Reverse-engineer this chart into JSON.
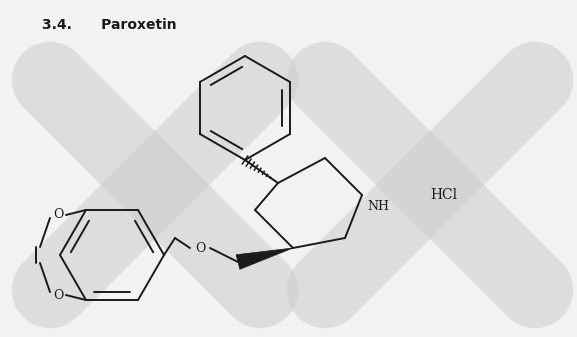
{
  "title": "3.4.      Paroxetin",
  "title_fontsize": 10,
  "title_fontweight": "bold",
  "hcl_text": "HCl",
  "nh_text": "NH",
  "o_text": "O",
  "o2_text": "O",
  "o3_text": "O",
  "background_color": "#f2f2f2",
  "bond_color": "#1a1a1a",
  "watermark_color": "#cccccc",
  "lw": 1.4
}
